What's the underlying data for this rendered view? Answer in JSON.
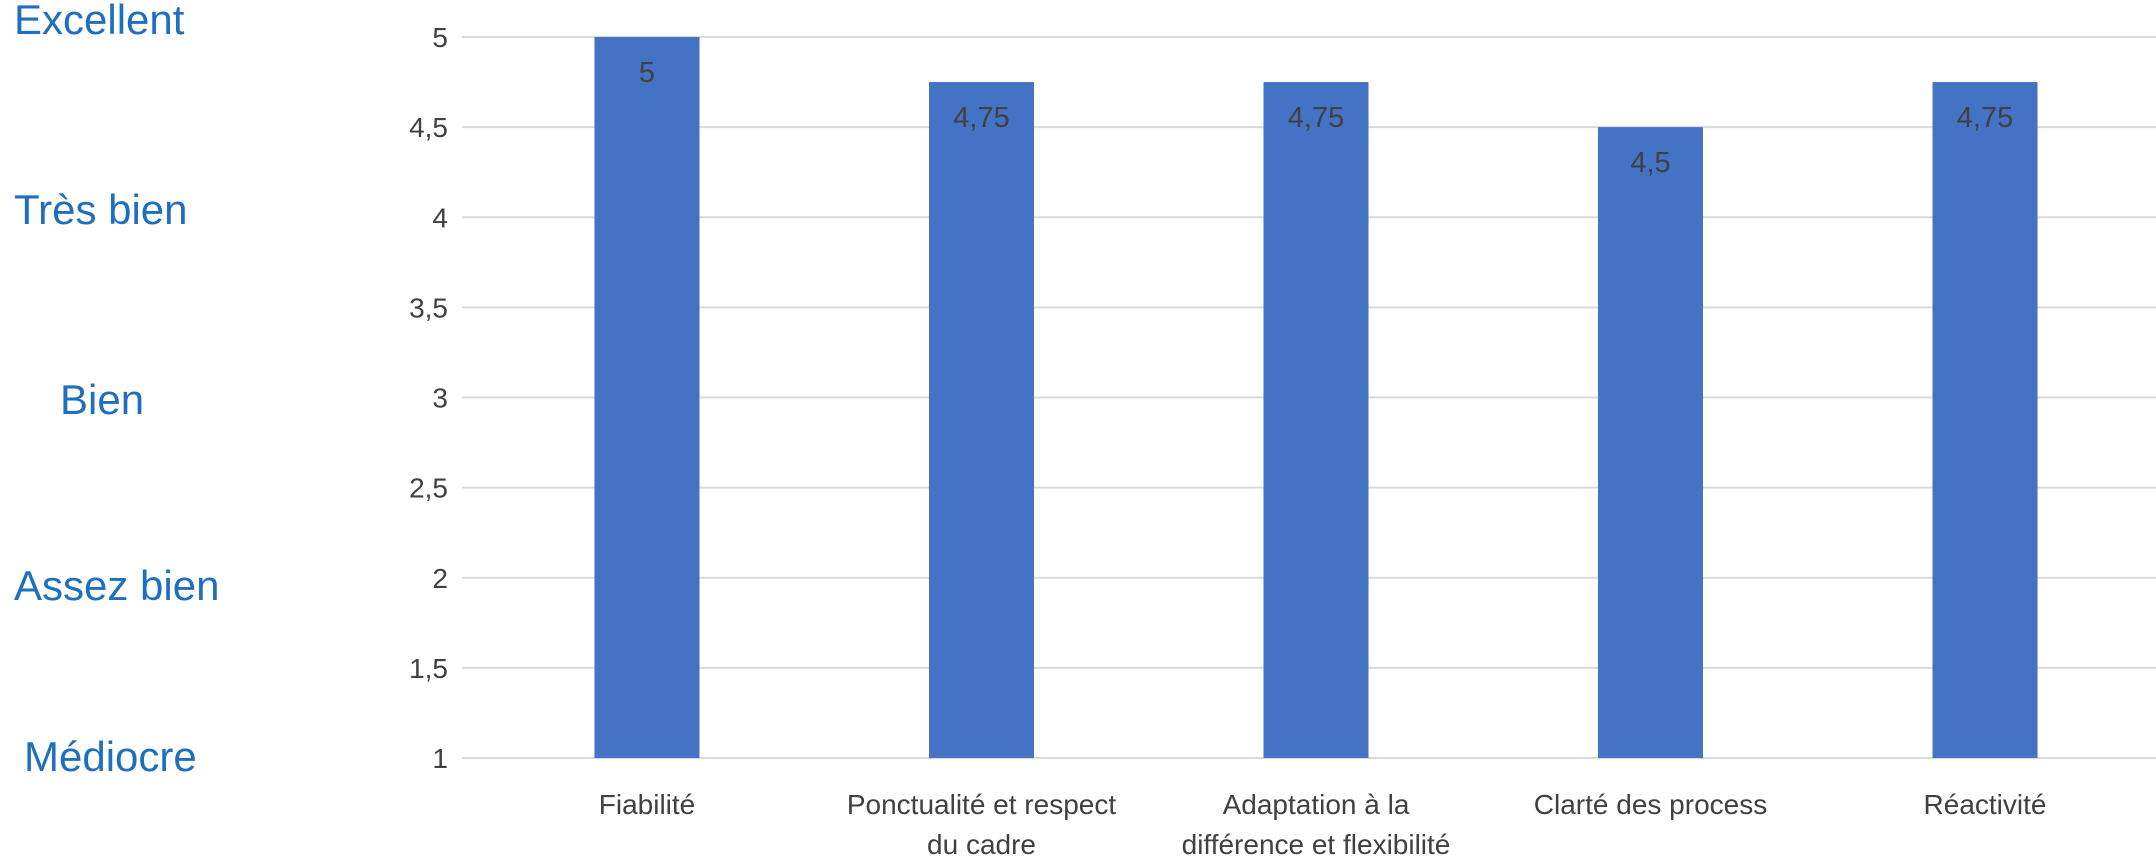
{
  "rating_scale": {
    "labels": [
      "Excellent",
      "Très bien",
      "Bien",
      "Assez bien",
      "Médiocre"
    ],
    "color": "#1f6fbf"
  },
  "chart_data": {
    "type": "bar",
    "title": "",
    "xlabel": "",
    "ylabel": "",
    "categories": [
      [
        "Fiabilité"
      ],
      [
        "Ponctualité et respect",
        "du cadre"
      ],
      [
        "Adaptation à la",
        "différence et flexibilité"
      ],
      [
        "Clarté des process"
      ],
      [
        "Réactivité"
      ]
    ],
    "values": [
      5,
      4.75,
      4.75,
      4.5,
      4.75
    ],
    "value_labels": [
      "5",
      "4,75",
      "4,75",
      "4,5",
      "4,75"
    ],
    "ylim": [
      1,
      5
    ],
    "yticks": [
      1,
      1.5,
      2,
      2.5,
      3,
      3.5,
      4,
      4.5,
      5
    ],
    "ytick_labels": [
      "1",
      "1,5",
      "2",
      "2,5",
      "3",
      "3,5",
      "4",
      "4,5",
      "5"
    ],
    "grid": true,
    "legend": false,
    "bar_color": "#4472c4",
    "grid_color": "#d9d9d9",
    "text_color": "#404040"
  }
}
